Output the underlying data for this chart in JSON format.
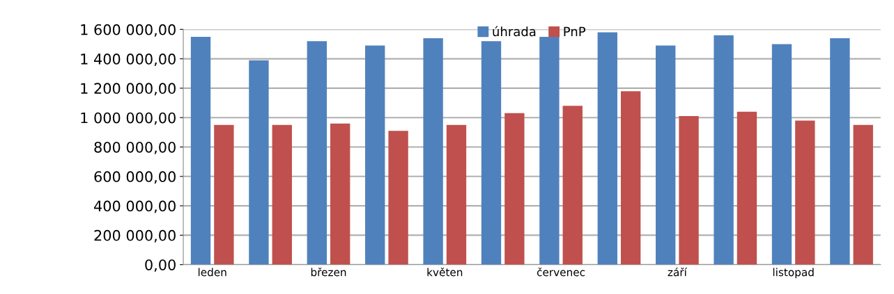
{
  "chart_data": {
    "type": "bar",
    "categories": [
      "leden",
      null,
      "březen",
      null,
      "květen",
      null,
      "červenec",
      null,
      "září",
      null,
      "listopad",
      null
    ],
    "series": [
      {
        "name": "úhrada",
        "color": "#4f81bd",
        "values": [
          1550000,
          1390000,
          1520000,
          1490000,
          1540000,
          1520000,
          1550000,
          1580000,
          1490000,
          1560000,
          1500000,
          1540000
        ]
      },
      {
        "name": "PnP",
        "color": "#c0504d",
        "values": [
          950000,
          950000,
          960000,
          910000,
          950000,
          1030000,
          1080000,
          1180000,
          1010000,
          1040000,
          980000,
          950000
        ]
      }
    ],
    "ylim": [
      0,
      1600000
    ],
    "yticks": [
      {
        "value": 0,
        "label": "0,00"
      },
      {
        "value": 200000,
        "label": "200 000,00"
      },
      {
        "value": 400000,
        "label": "400 000,00"
      },
      {
        "value": 600000,
        "label": "600 000,00"
      },
      {
        "value": 800000,
        "label": "800 000,00"
      },
      {
        "value": 1000000,
        "label": "1 000 000,00"
      },
      {
        "value": 1200000,
        "label": "1 200 000,00"
      },
      {
        "value": 1400000,
        "label": "1 400 000,00"
      },
      {
        "value": 1600000,
        "label": "1 600 000,00"
      }
    ],
    "grid": "y",
    "legend": "top"
  }
}
